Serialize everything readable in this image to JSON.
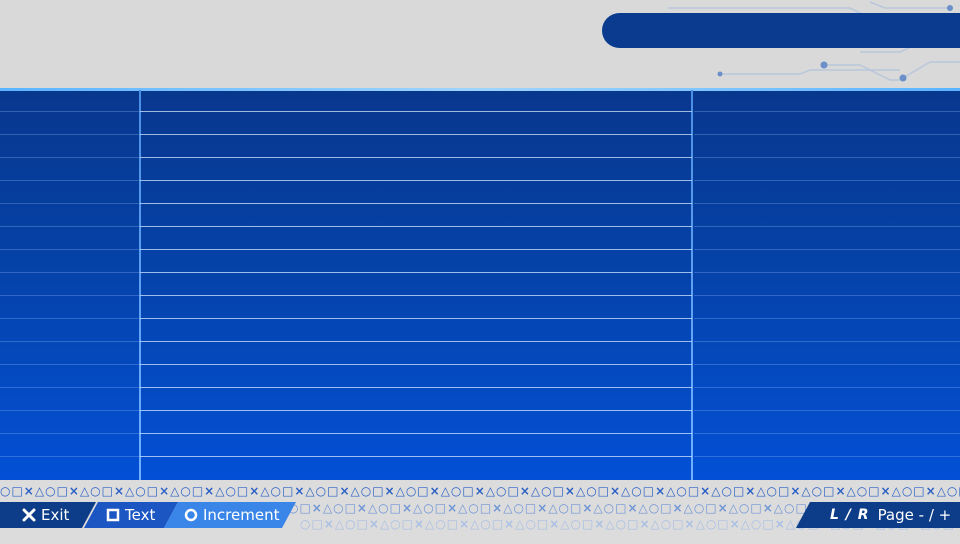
{
  "header": {
    "title": ""
  },
  "table": {
    "columns": [
      "",
      "",
      ""
    ],
    "rows": []
  },
  "footer": {
    "exit_label": "Exit",
    "text_label": "Text",
    "increment_label": "Increment",
    "lr_label": "L / R",
    "page_label": "Page - / +"
  },
  "decor": {
    "symbol_pattern": "○□×△"
  },
  "colors": {
    "accent_dark": "#0b3b8f",
    "accent": "#1b56c2",
    "accent_light": "#3a86e8",
    "band": "#dcdcdc"
  }
}
